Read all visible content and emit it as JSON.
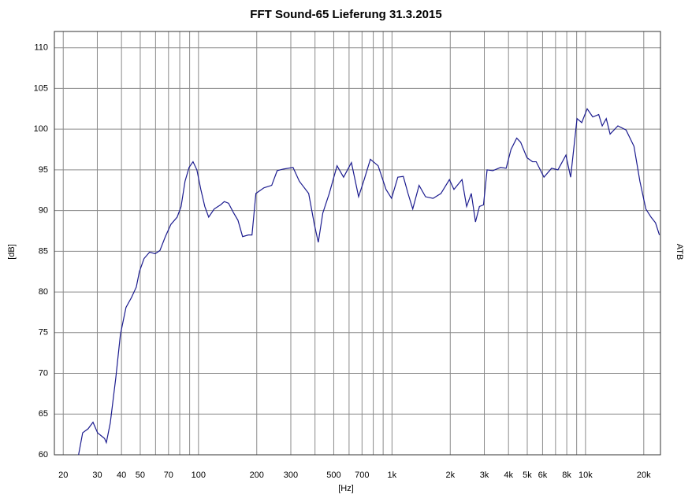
{
  "chart_data": {
    "type": "line",
    "title": "FFT   Sound-65 Lieferung 31.3.2015",
    "x_label": "[Hz]",
    "y_label": "[dB]",
    "right_label": "ATB",
    "log_x": true,
    "grid": true,
    "color": "#1c1c8f",
    "xlim": [
      18,
      24400
    ],
    "ylim": [
      60,
      112
    ],
    "xticks": [
      20,
      30,
      40,
      50,
      70,
      100,
      200,
      300,
      500,
      700,
      {
        "value": 1000,
        "label": "1k"
      },
      {
        "value": 2000,
        "label": "2k"
      },
      {
        "value": 3000,
        "label": "3k"
      },
      {
        "value": 4000,
        "label": "4k"
      },
      {
        "value": 5000,
        "label": "5k"
      },
      {
        "value": 6000,
        "label": "6k"
      },
      {
        "value": 8000,
        "label": "8k"
      },
      {
        "value": 10000,
        "label": "10k"
      },
      {
        "value": 20000,
        "label": "20k"
      }
    ],
    "x_minor_grid": [
      60,
      80,
      90,
      400,
      600,
      800,
      900,
      7000,
      9000
    ],
    "yticks": [
      60,
      65,
      70,
      75,
      80,
      85,
      90,
      95,
      100,
      105,
      110
    ],
    "x": [
      24,
      25.2,
      26.9,
      28.5,
      30.1,
      32.7,
      33.4,
      35,
      37.4,
      39.5,
      42.2,
      45,
      47.7,
      49.5,
      52.3,
      55.9,
      59.7,
      63.2,
      67.4,
      72,
      77.6,
      81.3,
      85.2,
      89.4,
      93.7,
      98.1,
      102.8,
      107.8,
      112.9,
      120.6,
      130,
      136,
      143,
      152,
      160,
      169,
      181,
      189,
      198,
      218,
      239,
      255,
      275,
      308,
      332,
      371,
      397,
      416,
      439,
      474,
      520,
      562,
      617,
      672,
      718,
      773,
      848,
      931,
      995,
      1072,
      1144,
      1210,
      1280,
      1380,
      1490,
      1630,
      1790,
      1980,
      2090,
      2300,
      2430,
      2570,
      2700,
      2830,
      2970,
      3100,
      3320,
      3640,
      3890,
      4120,
      4410,
      4620,
      4980,
      5320,
      5560,
      6100,
      6680,
      7200,
      7920,
      8380,
      9040,
      9560,
      10200,
      10900,
      11700,
      12200,
      12800,
      13400,
      14700,
      16200,
      17800,
      19100,
      20500,
      21800,
      23000,
      24100
    ],
    "values": [
      60,
      62.7,
      63.2,
      64,
      62.7,
      62,
      61.5,
      63.9,
      69.5,
      74.8,
      78.1,
      79.3,
      80.6,
      82.5,
      84.1,
      84.9,
      84.7,
      85.1,
      86.8,
      88.3,
      89.2,
      90.5,
      93.6,
      95.3,
      96,
      95,
      92.6,
      90.5,
      89.2,
      90.2,
      90.7,
      91.1,
      90.9,
      89.7,
      88.8,
      86.8,
      87,
      87,
      92.1,
      92.8,
      93.1,
      94.9,
      95.1,
      95.3,
      93.6,
      92.1,
      88.3,
      86.1,
      89.7,
      92.1,
      95.5,
      94.1,
      95.9,
      91.7,
      93.8,
      96.3,
      95.5,
      92.6,
      91.5,
      94.1,
      94.2,
      92.1,
      90.2,
      93.1,
      91.7,
      91.5,
      92.1,
      93.8,
      92.6,
      93.8,
      90.5,
      92.1,
      88.6,
      90.5,
      90.7,
      95,
      94.9,
      95.3,
      95.2,
      97.5,
      98.9,
      98.4,
      96.5,
      96,
      96,
      94.1,
      95.2,
      95,
      96.8,
      94.1,
      101.3,
      100.8,
      102.5,
      101.5,
      101.8,
      100.4,
      101.3,
      99.4,
      100.4,
      99.9,
      97.9,
      93.6,
      90.2,
      89.2,
      88.5,
      87
    ]
  }
}
